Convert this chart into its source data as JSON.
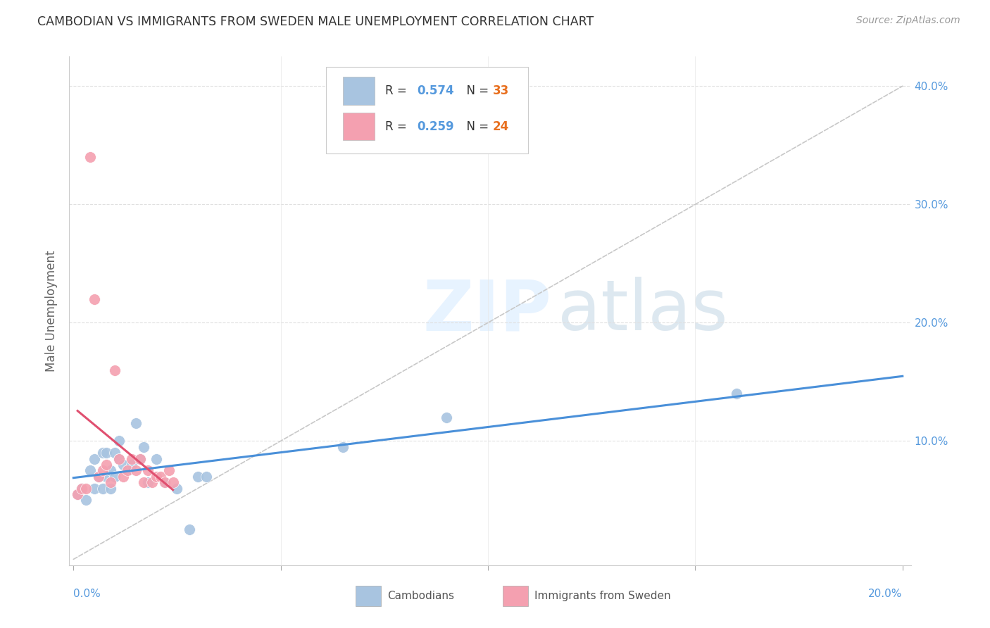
{
  "title": "CAMBODIAN VS IMMIGRANTS FROM SWEDEN MALE UNEMPLOYMENT CORRELATION CHART",
  "source": "Source: ZipAtlas.com",
  "ylabel": "Male Unemployment",
  "blue_color": "#a8c4e0",
  "pink_color": "#f4a0b0",
  "blue_line_color": "#4a90d9",
  "pink_line_color": "#e05070",
  "diag_line_color": "#c8c8c8",
  "legend_blue_r": "R = 0.574",
  "legend_blue_n": "N = 33",
  "legend_pink_r": "R = 0.259",
  "legend_pink_n": "N = 24",
  "xlim": [
    0.0,
    0.2
  ],
  "ylim": [
    0.0,
    0.42
  ],
  "cambodians_x": [
    0.001,
    0.002,
    0.003,
    0.004,
    0.005,
    0.005,
    0.006,
    0.007,
    0.007,
    0.008,
    0.008,
    0.009,
    0.009,
    0.01,
    0.01,
    0.011,
    0.011,
    0.012,
    0.013,
    0.014,
    0.015,
    0.016,
    0.017,
    0.018,
    0.02,
    0.022,
    0.025,
    0.028,
    0.03,
    0.032,
    0.065,
    0.09,
    0.16
  ],
  "cambodians_y": [
    0.055,
    0.06,
    0.05,
    0.075,
    0.085,
    0.06,
    0.07,
    0.09,
    0.06,
    0.07,
    0.09,
    0.075,
    0.06,
    0.09,
    0.07,
    0.1,
    0.085,
    0.08,
    0.075,
    0.08,
    0.115,
    0.085,
    0.095,
    0.065,
    0.085,
    0.065,
    0.06,
    0.025,
    0.07,
    0.07,
    0.095,
    0.12,
    0.14
  ],
  "sweden_x": [
    0.001,
    0.002,
    0.003,
    0.004,
    0.005,
    0.006,
    0.007,
    0.008,
    0.009,
    0.01,
    0.011,
    0.012,
    0.013,
    0.014,
    0.015,
    0.016,
    0.017,
    0.018,
    0.019,
    0.02,
    0.021,
    0.022,
    0.023,
    0.024
  ],
  "sweden_y": [
    0.055,
    0.06,
    0.06,
    0.34,
    0.22,
    0.07,
    0.075,
    0.08,
    0.065,
    0.16,
    0.085,
    0.07,
    0.075,
    0.085,
    0.075,
    0.085,
    0.065,
    0.075,
    0.065,
    0.07,
    0.07,
    0.065,
    0.075,
    0.065
  ]
}
